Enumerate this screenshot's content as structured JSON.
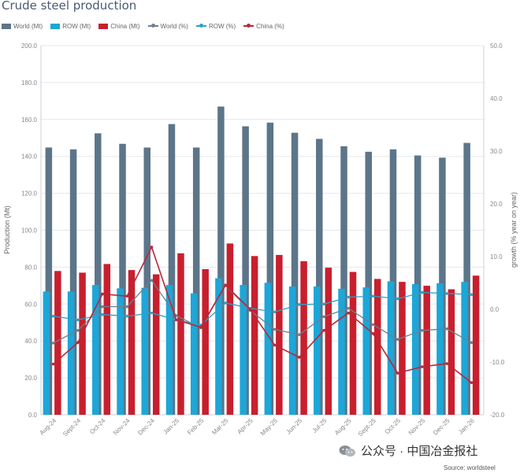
{
  "chart_data": {
    "type": "bar",
    "title": "Crude steel production",
    "categories": [
      "Aug-24",
      "Sept-24",
      "Oct-24",
      "Nov-24",
      "Dec-24",
      "Jan-25",
      "Feb-25",
      "Mar-25",
      "Apr-25",
      "May-25",
      "Jun-25",
      "Jul-25",
      "Aug-25",
      "Sept-25",
      "Oct-25",
      "Nov-25",
      "Dec-25",
      "Jan-26"
    ],
    "ylabel": "Production (Mt)",
    "y2label": "growth (% year on year)",
    "ylim": [
      0,
      200
    ],
    "y2lim": [
      -20,
      50
    ],
    "yticks": [
      "0.0",
      "20.0",
      "40.0",
      "60.0",
      "80.0",
      "100.0",
      "120.0",
      "140.0",
      "160.0",
      "180.0",
      "200.0"
    ],
    "y2ticks": [
      "-20.0",
      "-10.0",
      "0.0",
      "10.0",
      "20.0",
      "30.0",
      "40.0",
      "50.0"
    ],
    "grid": true,
    "legend_position": "top-left",
    "bar_series": [
      {
        "name": "World (Mt)",
        "color": "#5c7589",
        "values": [
          144.8,
          143.8,
          152.5,
          146.8,
          144.8,
          157.5,
          144.8,
          167.0,
          156.3,
          158.3,
          152.8,
          149.5,
          145.5,
          142.5,
          143.8,
          140.5,
          139.3,
          147.3
        ]
      },
      {
        "name": "ROW (Mt)",
        "color": "#1da6d8",
        "values": [
          66.8,
          66.8,
          70.3,
          68.5,
          68.8,
          70.3,
          65.8,
          74.0,
          70.3,
          71.5,
          69.5,
          69.5,
          68.3,
          69.0,
          72.3,
          70.8,
          71.3,
          72.0
        ]
      },
      {
        "name": "China (Mt)",
        "color": "#c81f2e",
        "values": [
          77.9,
          77.0,
          81.7,
          78.4,
          76.1,
          87.5,
          78.9,
          92.8,
          86.0,
          86.6,
          83.2,
          79.7,
          77.4,
          73.6,
          72.0,
          69.9,
          68.0,
          75.4
        ]
      }
    ],
    "line_series": [
      {
        "name": "World (%)",
        "color": "#6f7f8e",
        "values": [
          -6.4,
          -4.0,
          0.5,
          0.5,
          5.5,
          -1.2,
          -3.5,
          4.5,
          -0.2,
          -3.8,
          -4.8,
          -1.4,
          0.2,
          -2.9,
          -5.7,
          -4.0,
          -3.7,
          -6.3
        ]
      },
      {
        "name": "ROW (%)",
        "color": "#2aa3c9",
        "values": [
          -1.3,
          -2.0,
          -1.0,
          -1.3,
          -0.7,
          -2.0,
          -3.0,
          1.2,
          0.2,
          -0.5,
          0.9,
          1.0,
          2.3,
          2.5,
          2.0,
          3.2,
          3.0,
          2.8
        ]
      },
      {
        "name": "China (%)",
        "color": "#b8273a",
        "values": [
          -10.4,
          -6.3,
          2.9,
          2.5,
          11.8,
          -2.0,
          -3.4,
          4.6,
          0.0,
          -6.8,
          -9.1,
          -4.0,
          -0.7,
          -4.6,
          -12.1,
          -10.9,
          -10.3,
          -13.9
        ]
      }
    ]
  },
  "watermark": "公众号 · 中国冶金报社",
  "source": "Source: worldsteel"
}
